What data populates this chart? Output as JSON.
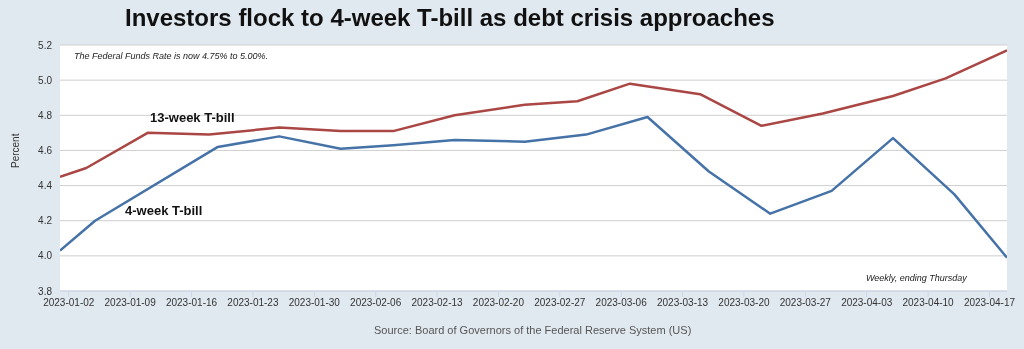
{
  "chart_data": {
    "type": "line",
    "title": "Investors flock to 4-week T-bill as debt crisis approaches",
    "ylabel": "Percent",
    "annotations": [
      "The Federal Funds Rate is now 4.75% to 5.00%.",
      "Weekly, ending Thursday",
      "Source: Board of Governors of the Federal Reserve System (US)"
    ],
    "series": [
      {
        "name": "13-week T-bill",
        "color": "#aa4643",
        "x": [
          "2023-01-01",
          "2023-01-04",
          "2023-01-11",
          "2023-01-18",
          "2023-01-26",
          "2023-02-02",
          "2023-02-08",
          "2023-02-15",
          "2023-02-23",
          "2023-03-01",
          "2023-03-07",
          "2023-03-15",
          "2023-03-22",
          "2023-03-29",
          "2023-04-06",
          "2023-04-12",
          "2023-04-19"
        ],
        "values": [
          4.45,
          4.5,
          4.7,
          4.69,
          4.73,
          4.71,
          4.71,
          4.8,
          4.86,
          4.88,
          4.98,
          4.92,
          4.74,
          4.81,
          4.91,
          5.01,
          5.17
        ]
      },
      {
        "name": "4-week T-bill",
        "color": "#4572a7",
        "x": [
          "2023-01-01",
          "2023-01-05",
          "2023-01-19",
          "2023-01-26",
          "2023-02-02",
          "2023-02-08",
          "2023-02-15",
          "2023-02-23",
          "2023-03-02",
          "2023-03-09",
          "2023-03-16",
          "2023-03-23",
          "2023-03-30",
          "2023-04-06",
          "2023-04-13",
          "2023-04-19"
        ],
        "values": [
          4.03,
          4.2,
          4.62,
          4.68,
          4.61,
          4.63,
          4.66,
          4.65,
          4.69,
          4.79,
          4.48,
          4.24,
          4.37,
          4.67,
          4.35,
          3.99
        ]
      }
    ],
    "xlim": [
      "2023-01-01",
      "2023-04-19"
    ],
    "xticks": [
      "2023-01-02",
      "2023-01-09",
      "2023-01-16",
      "2023-01-23",
      "2023-01-30",
      "2023-02-06",
      "2023-02-13",
      "2023-02-20",
      "2023-02-27",
      "2023-03-06",
      "2023-03-13",
      "2023-03-20",
      "2023-03-27",
      "2023-04-03",
      "2023-04-10",
      "2023-04-17"
    ],
    "ylim": [
      3.8,
      5.2
    ],
    "yticks": [
      {
        "value": 3.8,
        "label": "3.8"
      },
      {
        "value": 4.0,
        "label": "4.0"
      },
      {
        "value": 4.2,
        "label": "4.2"
      },
      {
        "value": 4.4,
        "label": "4.4"
      },
      {
        "value": 4.6,
        "label": "4.6"
      },
      {
        "value": 4.8,
        "label": "4.8"
      },
      {
        "value": 5.0,
        "label": "5.0"
      },
      {
        "value": 5.2,
        "label": "5.2"
      }
    ],
    "grid": "y",
    "legend": false,
    "marker": "none",
    "line_style": "solid"
  }
}
